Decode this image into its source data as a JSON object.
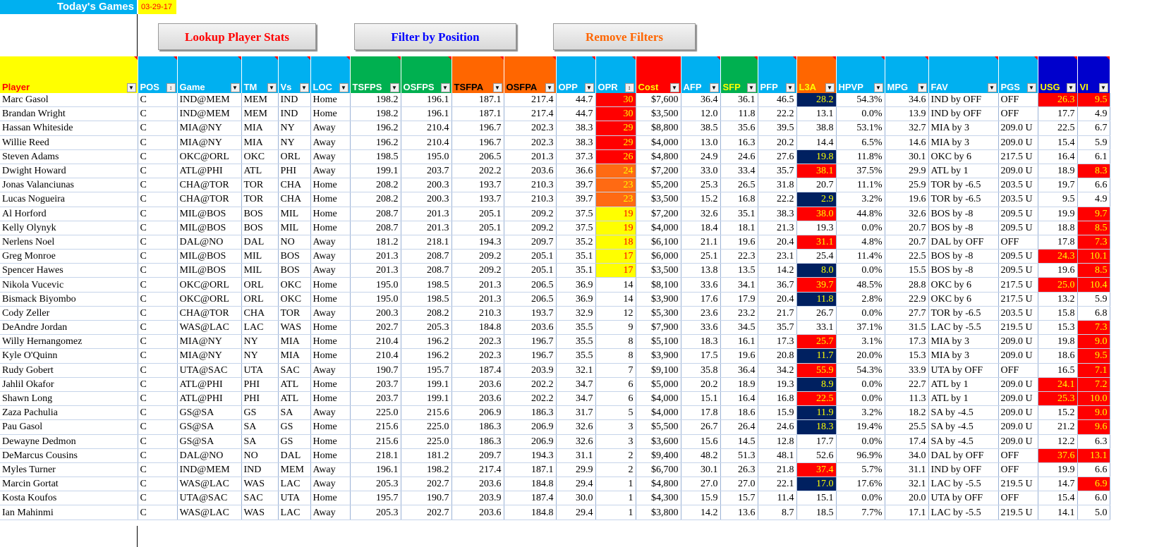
{
  "header": {
    "title": "Today's Games",
    "date": "03-29-17"
  },
  "buttons": {
    "lookup": "Lookup Player Stats",
    "filter": "Filter by Position",
    "remove": "Remove Filters"
  },
  "columns": [
    "Player",
    "POS",
    "Game",
    "TM",
    "Vs",
    "LOC",
    "TSFPS",
    "OSFPS",
    "TSFPA",
    "OSFPA",
    "OPP",
    "OPR",
    "Cost",
    "AFP",
    "SFP",
    "PFP",
    "L3A",
    "HPVP",
    "MPG",
    "FAV",
    "PGS",
    "USG",
    "VI"
  ],
  "colors": {
    "header_blue": "#00b0f0",
    "header_green": "#00b050",
    "header_orange": "#ff6600",
    "highlight_red": "#ff0000",
    "highlight_navy": "#002060",
    "highlight_yellow": "#ffff00"
  },
  "rows": [
    [
      "Marc Gasol",
      "C",
      "IND@MEM",
      "MEM",
      "IND",
      "Home",
      "198.2",
      "196.1",
      "187.1",
      "217.4",
      "44.7",
      "30",
      "$7,600",
      "36.4",
      "36.1",
      "46.5",
      "28.2",
      "54.3%",
      "34.6",
      "IND by OFF",
      "OFF",
      "26.3",
      "9.5"
    ],
    [
      "Brandan Wright",
      "C",
      "IND@MEM",
      "MEM",
      "IND",
      "Home",
      "198.2",
      "196.1",
      "187.1",
      "217.4",
      "44.7",
      "30",
      "$3,500",
      "12.0",
      "11.8",
      "22.2",
      "13.1",
      "0.0%",
      "13.9",
      "IND by OFF",
      "OFF",
      "17.7",
      "4.9"
    ],
    [
      "Hassan Whiteside",
      "C",
      "MIA@NY",
      "MIA",
      "NY",
      "Away",
      "196.2",
      "210.4",
      "196.7",
      "202.3",
      "38.3",
      "29",
      "$8,800",
      "38.5",
      "35.6",
      "39.5",
      "38.8",
      "53.1%",
      "32.7",
      "MIA by 3",
      "209.0 U",
      "22.5",
      "6.7"
    ],
    [
      "Willie Reed",
      "C",
      "MIA@NY",
      "MIA",
      "NY",
      "Away",
      "196.2",
      "210.4",
      "196.7",
      "202.3",
      "38.3",
      "29",
      "$4,000",
      "13.0",
      "16.3",
      "20.2",
      "14.4",
      "6.5%",
      "14.6",
      "MIA by 3",
      "209.0 U",
      "15.4",
      "5.9"
    ],
    [
      "Steven Adams",
      "C",
      "OKC@ORL",
      "OKC",
      "ORL",
      "Away",
      "198.5",
      "195.0",
      "206.5",
      "201.3",
      "37.3",
      "26",
      "$4,800",
      "24.9",
      "24.6",
      "27.6",
      "19.8",
      "11.8%",
      "30.1",
      "OKC by 6",
      "217.5 U",
      "16.4",
      "6.1"
    ],
    [
      "Dwight Howard",
      "C",
      "ATL@PHI",
      "ATL",
      "PHI",
      "Away",
      "199.1",
      "203.7",
      "202.2",
      "203.6",
      "36.6",
      "24",
      "$7,200",
      "33.0",
      "33.4",
      "35.7",
      "38.1",
      "37.5%",
      "29.9",
      "ATL by 1",
      "209.0 U",
      "18.9",
      "8.3"
    ],
    [
      "Jonas Valanciunas",
      "C",
      "CHA@TOR",
      "TOR",
      "CHA",
      "Home",
      "208.2",
      "200.3",
      "193.7",
      "210.3",
      "39.7",
      "23",
      "$5,200",
      "25.3",
      "26.5",
      "31.8",
      "20.7",
      "11.1%",
      "25.9",
      "TOR by -6.5",
      "203.5 U",
      "19.7",
      "6.6"
    ],
    [
      "Lucas Nogueira",
      "C",
      "CHA@TOR",
      "TOR",
      "CHA",
      "Home",
      "208.2",
      "200.3",
      "193.7",
      "210.3",
      "39.7",
      "23",
      "$3,500",
      "15.2",
      "16.8",
      "22.2",
      "2.9",
      "3.2%",
      "19.6",
      "TOR by -6.5",
      "203.5 U",
      "9.5",
      "4.9"
    ],
    [
      "Al Horford",
      "C",
      "MIL@BOS",
      "BOS",
      "MIL",
      "Home",
      "208.7",
      "201.3",
      "205.1",
      "209.2",
      "37.5",
      "19",
      "$7,200",
      "32.6",
      "35.1",
      "38.3",
      "38.0",
      "44.8%",
      "32.6",
      "BOS by -8",
      "209.5 U",
      "19.9",
      "9.7"
    ],
    [
      "Kelly Olynyk",
      "C",
      "MIL@BOS",
      "BOS",
      "MIL",
      "Home",
      "208.7",
      "201.3",
      "205.1",
      "209.2",
      "37.5",
      "19",
      "$4,000",
      "18.4",
      "18.1",
      "21.3",
      "19.3",
      "0.0%",
      "20.7",
      "BOS by -8",
      "209.5 U",
      "18.8",
      "8.5"
    ],
    [
      "Nerlens Noel",
      "C",
      "DAL@NO",
      "DAL",
      "NO",
      "Away",
      "181.2",
      "218.1",
      "194.3",
      "209.7",
      "35.2",
      "18",
      "$6,100",
      "21.1",
      "19.6",
      "20.4",
      "31.1",
      "4.8%",
      "20.7",
      "DAL by OFF",
      "OFF",
      "17.8",
      "7.3"
    ],
    [
      "Greg Monroe",
      "C",
      "MIL@BOS",
      "MIL",
      "BOS",
      "Away",
      "201.3",
      "208.7",
      "209.2",
      "205.1",
      "35.1",
      "17",
      "$6,000",
      "25.1",
      "22.3",
      "23.1",
      "25.4",
      "11.4%",
      "22.5",
      "BOS by -8",
      "209.5 U",
      "24.3",
      "10.1"
    ],
    [
      "Spencer Hawes",
      "C",
      "MIL@BOS",
      "MIL",
      "BOS",
      "Away",
      "201.3",
      "208.7",
      "209.2",
      "205.1",
      "35.1",
      "17",
      "$3,500",
      "13.8",
      "13.5",
      "14.2",
      "8.0",
      "0.0%",
      "15.5",
      "BOS by -8",
      "209.5 U",
      "19.6",
      "8.5"
    ],
    [
      "Nikola Vucevic",
      "C",
      "OKC@ORL",
      "ORL",
      "OKC",
      "Home",
      "195.0",
      "198.5",
      "201.3",
      "206.5",
      "36.9",
      "14",
      "$8,100",
      "33.6",
      "34.1",
      "36.7",
      "39.7",
      "48.5%",
      "28.8",
      "OKC by 6",
      "217.5 U",
      "25.0",
      "10.4"
    ],
    [
      "Bismack Biyombo",
      "C",
      "OKC@ORL",
      "ORL",
      "OKC",
      "Home",
      "195.0",
      "198.5",
      "201.3",
      "206.5",
      "36.9",
      "14",
      "$3,900",
      "17.6",
      "17.9",
      "20.4",
      "11.8",
      "2.8%",
      "22.9",
      "OKC by 6",
      "217.5 U",
      "13.2",
      "5.9"
    ],
    [
      "Cody Zeller",
      "C",
      "CHA@TOR",
      "CHA",
      "TOR",
      "Away",
      "200.3",
      "208.2",
      "210.3",
      "193.7",
      "32.9",
      "12",
      "$5,300",
      "23.6",
      "23.2",
      "21.7",
      "26.7",
      "0.0%",
      "27.7",
      "TOR by -6.5",
      "203.5 U",
      "15.8",
      "6.8"
    ],
    [
      "DeAndre Jordan",
      "C",
      "WAS@LAC",
      "LAC",
      "WAS",
      "Home",
      "202.7",
      "205.3",
      "184.8",
      "203.6",
      "35.5",
      "9",
      "$7,900",
      "33.6",
      "34.5",
      "35.7",
      "33.1",
      "37.1%",
      "31.5",
      "LAC by -5.5",
      "219.5 U",
      "15.3",
      "7.3"
    ],
    [
      "Willy Hernangomez",
      "C",
      "MIA@NY",
      "NY",
      "MIA",
      "Home",
      "210.4",
      "196.2",
      "202.3",
      "196.7",
      "35.5",
      "8",
      "$5,100",
      "18.3",
      "16.1",
      "17.3",
      "25.7",
      "3.1%",
      "17.3",
      "MIA by 3",
      "209.0 U",
      "19.8",
      "9.0"
    ],
    [
      "Kyle O'Quinn",
      "C",
      "MIA@NY",
      "NY",
      "MIA",
      "Home",
      "210.4",
      "196.2",
      "202.3",
      "196.7",
      "35.5",
      "8",
      "$3,900",
      "17.5",
      "19.6",
      "20.8",
      "11.7",
      "20.0%",
      "15.3",
      "MIA by 3",
      "209.0 U",
      "18.6",
      "9.5"
    ],
    [
      "Rudy Gobert",
      "C",
      "UTA@SAC",
      "UTA",
      "SAC",
      "Away",
      "190.7",
      "195.7",
      "187.4",
      "203.9",
      "32.1",
      "7",
      "$9,100",
      "35.8",
      "36.4",
      "34.2",
      "55.9",
      "54.3%",
      "33.9",
      "UTA by OFF",
      "OFF",
      "16.5",
      "7.1"
    ],
    [
      "Jahlil Okafor",
      "C",
      "ATL@PHI",
      "PHI",
      "ATL",
      "Home",
      "203.7",
      "199.1",
      "203.6",
      "202.2",
      "34.7",
      "6",
      "$5,000",
      "20.2",
      "18.9",
      "19.3",
      "8.9",
      "0.0%",
      "22.7",
      "ATL by 1",
      "209.0 U",
      "24.1",
      "7.2"
    ],
    [
      "Shawn Long",
      "C",
      "ATL@PHI",
      "PHI",
      "ATL",
      "Home",
      "203.7",
      "199.1",
      "203.6",
      "202.2",
      "34.7",
      "6",
      "$4,000",
      "15.1",
      "16.4",
      "16.8",
      "22.5",
      "0.0%",
      "11.3",
      "ATL by 1",
      "209.0 U",
      "25.3",
      "10.0"
    ],
    [
      "Zaza Pachulia",
      "C",
      "GS@SA",
      "GS",
      "SA",
      "Away",
      "225.0",
      "215.6",
      "206.9",
      "186.3",
      "31.7",
      "5",
      "$4,000",
      "17.8",
      "18.6",
      "15.9",
      "11.9",
      "3.2%",
      "18.2",
      "SA by -4.5",
      "209.0 U",
      "15.2",
      "9.0"
    ],
    [
      "Pau Gasol",
      "C",
      "GS@SA",
      "SA",
      "GS",
      "Home",
      "215.6",
      "225.0",
      "186.3",
      "206.9",
      "32.6",
      "3",
      "$5,500",
      "26.7",
      "26.4",
      "24.6",
      "18.3",
      "19.4%",
      "25.5",
      "SA by -4.5",
      "209.0 U",
      "21.2",
      "9.6"
    ],
    [
      "Dewayne Dedmon",
      "C",
      "GS@SA",
      "SA",
      "GS",
      "Home",
      "215.6",
      "225.0",
      "186.3",
      "206.9",
      "32.6",
      "3",
      "$3,600",
      "15.6",
      "14.5",
      "12.8",
      "17.7",
      "0.0%",
      "17.4",
      "SA by -4.5",
      "209.0 U",
      "12.2",
      "6.3"
    ],
    [
      "DeMarcus Cousins",
      "C",
      "DAL@NO",
      "NO",
      "DAL",
      "Home",
      "218.1",
      "181.2",
      "209.7",
      "194.3",
      "31.1",
      "2",
      "$9,400",
      "48.2",
      "51.3",
      "48.1",
      "52.6",
      "96.9%",
      "34.0",
      "DAL by OFF",
      "OFF",
      "37.6",
      "13.1"
    ],
    [
      "Myles Turner",
      "C",
      "IND@MEM",
      "IND",
      "MEM",
      "Away",
      "196.1",
      "198.2",
      "217.4",
      "187.1",
      "29.9",
      "2",
      "$6,700",
      "30.1",
      "26.3",
      "21.8",
      "37.4",
      "5.7%",
      "31.1",
      "IND by OFF",
      "OFF",
      "19.9",
      "6.6"
    ],
    [
      "Marcin Gortat",
      "C",
      "WAS@LAC",
      "WAS",
      "LAC",
      "Away",
      "205.3",
      "202.7",
      "203.6",
      "184.8",
      "29.4",
      "1",
      "$4,800",
      "27.0",
      "27.0",
      "22.1",
      "17.0",
      "17.6%",
      "32.1",
      "LAC by -5.5",
      "219.5 U",
      "14.7",
      "6.9"
    ],
    [
      "Kosta Koufos",
      "C",
      "UTA@SAC",
      "SAC",
      "UTA",
      "Home",
      "195.7",
      "190.7",
      "203.9",
      "187.4",
      "30.0",
      "1",
      "$4,300",
      "15.9",
      "15.7",
      "11.4",
      "15.1",
      "0.0%",
      "20.0",
      "UTA by OFF",
      "OFF",
      "15.4",
      "6.0"
    ],
    [
      "Ian Mahinmi",
      "C",
      "WAS@LAC",
      "WAS",
      "LAC",
      "Away",
      "205.3",
      "202.7",
      "203.6",
      "184.8",
      "29.4",
      "1",
      "$3,800",
      "14.2",
      "13.6",
      "8.7",
      "18.5",
      "7.7%",
      "17.1",
      "LAC by -5.5",
      "219.5 U",
      "14.1",
      "5.0"
    ]
  ]
}
